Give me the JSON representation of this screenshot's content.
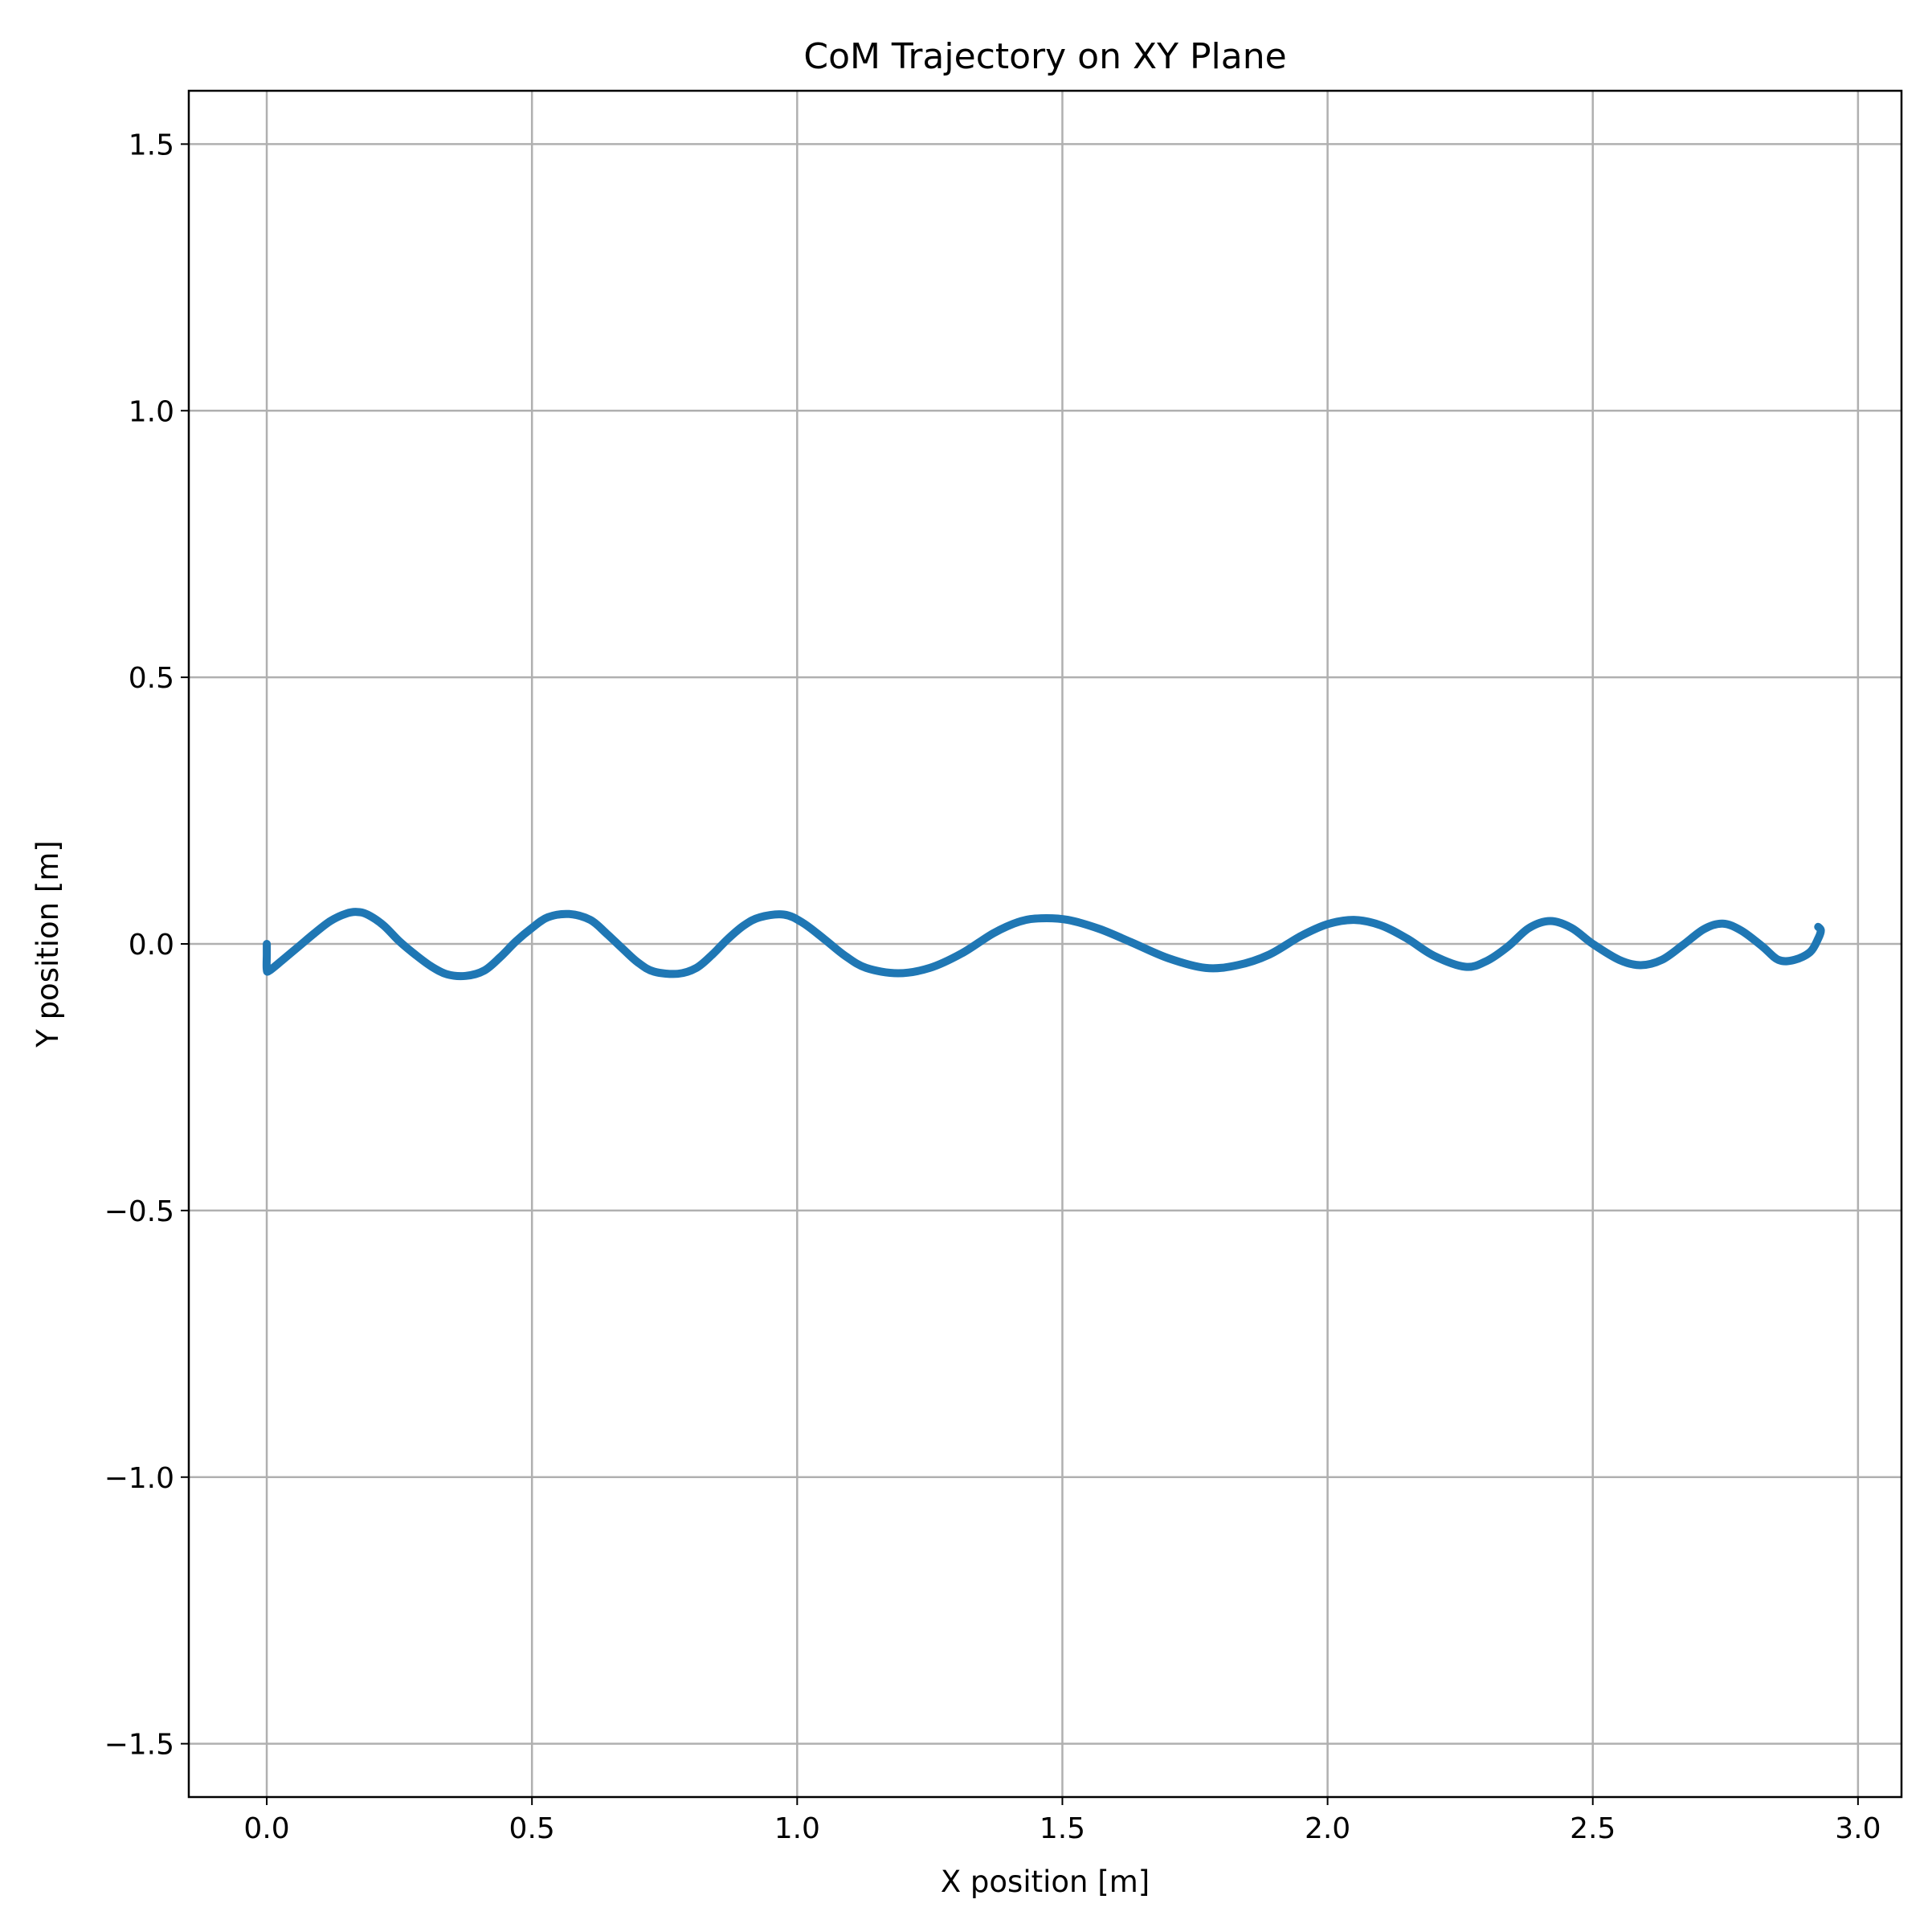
{
  "chart_data": {
    "type": "line",
    "title": "CoM Trajectory on XY Plane",
    "xlabel": "X position [m]",
    "ylabel": "Y position [m]",
    "xlim": [
      -0.147,
      3.082
    ],
    "ylim": [
      -1.6,
      1.6
    ],
    "xticks": [
      0.0,
      0.5,
      1.0,
      1.5,
      2.0,
      2.5,
      3.0
    ],
    "xtick_labels": [
      "0.0",
      "0.5",
      "1.0",
      "1.5",
      "2.0",
      "2.5",
      "3.0"
    ],
    "yticks": [
      -1.5,
      -1.0,
      -0.5,
      0.0,
      0.5,
      1.0,
      1.5
    ],
    "ytick_labels": [
      "−1.5",
      "−1.0",
      "−0.5",
      "0.0",
      "0.5",
      "1.0",
      "1.5"
    ],
    "grid": true,
    "legend": "none",
    "series": [
      {
        "color": "#1f77b4",
        "x": [
          0.0,
          0.0,
          0.0,
          0.005,
          0.03,
          0.06,
          0.09,
          0.12,
          0.15,
          0.17,
          0.19,
          0.22,
          0.25,
          0.28,
          0.31,
          0.34,
          0.375,
          0.41,
          0.44,
          0.47,
          0.5,
          0.53,
          0.57,
          0.61,
          0.64,
          0.67,
          0.7,
          0.73,
          0.775,
          0.81,
          0.84,
          0.87,
          0.9,
          0.93,
          0.975,
          1.01,
          1.05,
          1.09,
          1.13,
          1.19,
          1.25,
          1.31,
          1.37,
          1.42,
          1.46,
          1.51,
          1.57,
          1.63,
          1.7,
          1.77,
          1.83,
          1.89,
          1.95,
          2.0,
          2.05,
          2.1,
          2.15,
          2.2,
          2.26,
          2.3,
          2.34,
          2.38,
          2.42,
          2.46,
          2.5,
          2.55,
          2.59,
          2.63,
          2.67,
          2.71,
          2.745,
          2.78,
          2.82,
          2.85,
          2.88,
          2.91,
          2.925,
          2.93,
          2.925
        ],
        "y": [
          0.0,
          -0.02,
          -0.048,
          -0.05,
          -0.03,
          -0.005,
          0.02,
          0.043,
          0.057,
          0.06,
          0.055,
          0.035,
          0.005,
          -0.02,
          -0.042,
          -0.057,
          -0.06,
          -0.05,
          -0.025,
          0.005,
          0.03,
          0.05,
          0.056,
          0.045,
          0.02,
          -0.008,
          -0.035,
          -0.052,
          -0.056,
          -0.045,
          -0.02,
          0.01,
          0.035,
          0.05,
          0.055,
          0.04,
          0.01,
          -0.022,
          -0.045,
          -0.055,
          -0.045,
          -0.018,
          0.02,
          0.042,
          0.048,
          0.045,
          0.028,
          0.003,
          -0.027,
          -0.045,
          -0.04,
          -0.02,
          0.015,
          0.037,
          0.045,
          0.035,
          0.01,
          -0.022,
          -0.043,
          -0.032,
          -0.005,
          0.03,
          0.043,
          0.03,
          0.0,
          -0.03,
          -0.04,
          -0.03,
          -0.002,
          0.028,
          0.038,
          0.025,
          -0.005,
          -0.03,
          -0.03,
          -0.015,
          0.01,
          0.025,
          0.032
        ]
      }
    ]
  }
}
